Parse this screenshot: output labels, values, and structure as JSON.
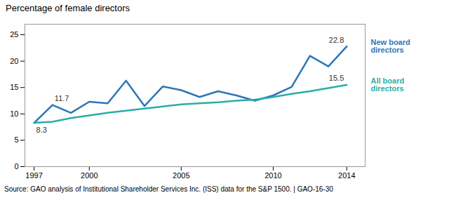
{
  "chart_data": {
    "type": "line",
    "title": "Percentage of female directors",
    "source": "Source: GAO analysis of Institutional Shareholder Services Inc. (ISS) data for the S&P 1500.  |  GAO-16-30",
    "x": [
      1997,
      1998,
      1999,
      2000,
      2001,
      2002,
      2003,
      2004,
      2005,
      2006,
      2007,
      2008,
      2009,
      2010,
      2011,
      2012,
      2013,
      2014
    ],
    "series": [
      {
        "name": "New board directors",
        "color": "#2E75B6",
        "values": [
          8.3,
          11.7,
          10.2,
          12.3,
          12.0,
          16.3,
          11.5,
          15.2,
          14.5,
          13.2,
          14.3,
          13.5,
          12.5,
          13.5,
          15.1,
          21.0,
          19.0,
          22.8
        ]
      },
      {
        "name": "All board directors",
        "color": "#2AADA8",
        "values": [
          8.3,
          8.5,
          9.2,
          9.7,
          10.2,
          10.6,
          11.0,
          11.4,
          11.8,
          12.0,
          12.2,
          12.5,
          12.7,
          13.2,
          13.8,
          14.3,
          14.9,
          15.5
        ]
      }
    ],
    "annotations": [
      {
        "text": "11.7",
        "x": 1998,
        "y": 11.7
      },
      {
        "text": "8.3",
        "x": 1997,
        "y": 8.3
      },
      {
        "text": "22.8",
        "x": 2014,
        "y": 22.8
      },
      {
        "text": "15.5",
        "x": 2014,
        "y": 15.5
      }
    ],
    "xlim": [
      1996.5,
      2015.0
    ],
    "xticks": [
      1997,
      2000,
      2005,
      2010,
      2014
    ],
    "ylim": [
      0,
      27
    ],
    "yticks": [
      0,
      5,
      10,
      15,
      20,
      25
    ],
    "grid": false
  }
}
